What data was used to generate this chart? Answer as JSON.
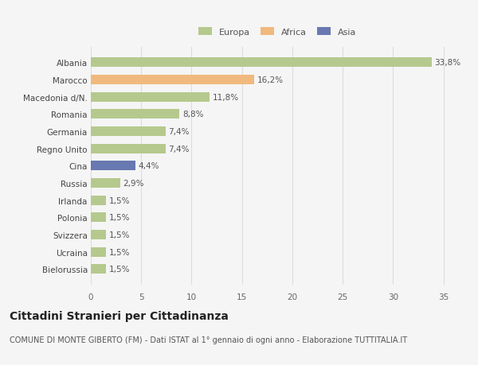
{
  "categories": [
    "Albania",
    "Marocco",
    "Macedonia d/N.",
    "Romania",
    "Germania",
    "Regno Unito",
    "Cina",
    "Russia",
    "Irlanda",
    "Polonia",
    "Svizzera",
    "Ucraina",
    "Bielorussia"
  ],
  "values": [
    33.8,
    16.2,
    11.8,
    8.8,
    7.4,
    7.4,
    4.4,
    2.9,
    1.5,
    1.5,
    1.5,
    1.5,
    1.5
  ],
  "labels": [
    "33,8%",
    "16,2%",
    "11,8%",
    "8,8%",
    "7,4%",
    "7,4%",
    "4,4%",
    "2,9%",
    "1,5%",
    "1,5%",
    "1,5%",
    "1,5%",
    "1,5%"
  ],
  "continents": [
    "Europa",
    "Africa",
    "Europa",
    "Europa",
    "Europa",
    "Europa",
    "Asia",
    "Europa",
    "Europa",
    "Europa",
    "Europa",
    "Europa",
    "Europa"
  ],
  "colors": {
    "Europa": "#b5c98e",
    "Africa": "#f0b97e",
    "Asia": "#6878b0"
  },
  "legend_labels": [
    "Europa",
    "Africa",
    "Asia"
  ],
  "legend_colors": [
    "#b5c98e",
    "#f0b97e",
    "#6878b0"
  ],
  "xlim": [
    0,
    37
  ],
  "xticks": [
    0,
    5,
    10,
    15,
    20,
    25,
    30,
    35
  ],
  "title": "Cittadini Stranieri per Cittadinanza",
  "subtitle": "COMUNE DI MONTE GIBERTO (FM) - Dati ISTAT al 1° gennaio di ogni anno - Elaborazione TUTTITALIA.IT",
  "background_color": "#f5f5f5",
  "grid_color": "#dddddd",
  "label_fontsize": 7.5,
  "tick_fontsize": 7.5,
  "title_fontsize": 10,
  "subtitle_fontsize": 7
}
